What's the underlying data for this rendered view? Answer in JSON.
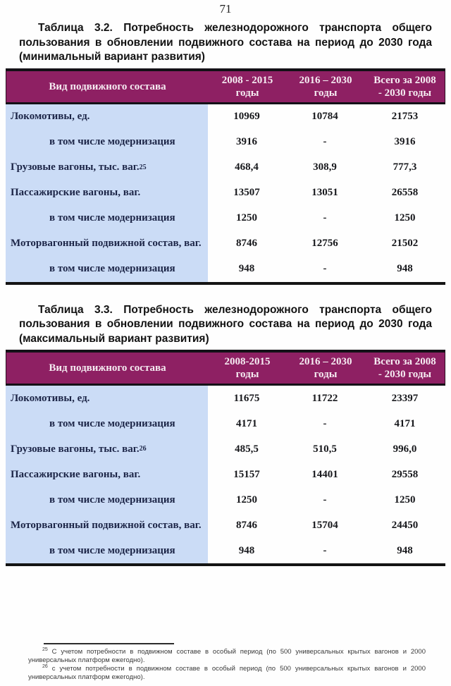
{
  "page": {
    "number": "71"
  },
  "colors": {
    "header_bg": "#8e2063",
    "header_text": "#f6ecf2",
    "label_col_bg": "#cbdcf6",
    "label_text": "#1c2547",
    "value_text": "#17181c",
    "rule_black": "#141414"
  },
  "tables": [
    {
      "title": "Таблица 3.2. Потребность железнодорожного транспорта общего пользования в обновлении подвижного состава на период до 2030 года (минимальный вариант развития)",
      "header": {
        "label": "Вид подвижного состава",
        "cols": [
          {
            "l1": "2008 - 2015",
            "l2": "годы"
          },
          {
            "l1": "2016 – 2030",
            "l2": "годы"
          },
          {
            "l1": "Всего за 2008",
            "l2": "- 2030 годы"
          }
        ]
      },
      "rows": [
        {
          "label": "Локомотивы, ед.",
          "values": [
            "10969",
            "10784",
            "21753"
          ]
        },
        {
          "label": "в том числе модернизация",
          "indent": true,
          "values": [
            "3916",
            "-",
            "3916"
          ]
        },
        {
          "label": "Грузовые вагоны, тыс. ваг.",
          "sup": "25",
          "values": [
            "468,4",
            "308,9",
            "777,3"
          ]
        },
        {
          "label": "Пассажирские вагоны, ваг.",
          "values": [
            "13507",
            "13051",
            "26558"
          ]
        },
        {
          "label": "в том числе модернизация",
          "indent": true,
          "values": [
            "1250",
            "-",
            "1250"
          ]
        },
        {
          "label": "Моторвагонный подвижной состав, ваг.",
          "values": [
            "8746",
            "12756",
            "21502"
          ]
        },
        {
          "label": "в том числе модернизация",
          "indent": true,
          "values": [
            "948",
            "-",
            "948"
          ]
        }
      ]
    },
    {
      "title": "Таблица 3.3. Потребность железнодорожного транспорта общего пользования в обновлении подвижного состава на период до 2030 года (максимальный вариант развития)",
      "header": {
        "label": "Вид подвижного состава",
        "cols": [
          {
            "l1": "2008-2015",
            "l2": "годы"
          },
          {
            "l1": "2016 – 2030",
            "l2": "годы"
          },
          {
            "l1": "Всего за 2008",
            "l2": "- 2030 годы"
          }
        ]
      },
      "rows": [
        {
          "label": "Локомотивы, ед.",
          "values": [
            "11675",
            "11722",
            "23397"
          ]
        },
        {
          "label": "в том числе модернизация",
          "indent": true,
          "values": [
            "4171",
            "-",
            "4171"
          ]
        },
        {
          "label": "Грузовые вагоны, тыс. ваг.",
          "sup": "26",
          "values": [
            "485,5",
            "510,5",
            "996,0"
          ]
        },
        {
          "label": "Пассажирские вагоны, ваг.",
          "values": [
            "15157",
            "14401",
            "29558"
          ]
        },
        {
          "label": "в том числе модернизация",
          "indent": true,
          "values": [
            "1250",
            "-",
            "1250"
          ]
        },
        {
          "label": "Моторвагонный подвижной состав, ваг.",
          "values": [
            "8746",
            "15704",
            "24450"
          ]
        },
        {
          "label": "в том числе модернизация",
          "indent": true,
          "values": [
            "948",
            "-",
            "948"
          ]
        }
      ]
    }
  ],
  "footnotes": [
    {
      "sup": "25",
      "text": "С учетом потребности в подвижном составе в особый период (по 500 универсальных крытых вагонов и 2000 универсальных платформ ежегодно)."
    },
    {
      "sup": "26",
      "text": "с учетом потребности в подвижном составе в особый период (по 500 универсальных крытых вагонов и 2000 универсальных платформ ежегодно)."
    }
  ]
}
